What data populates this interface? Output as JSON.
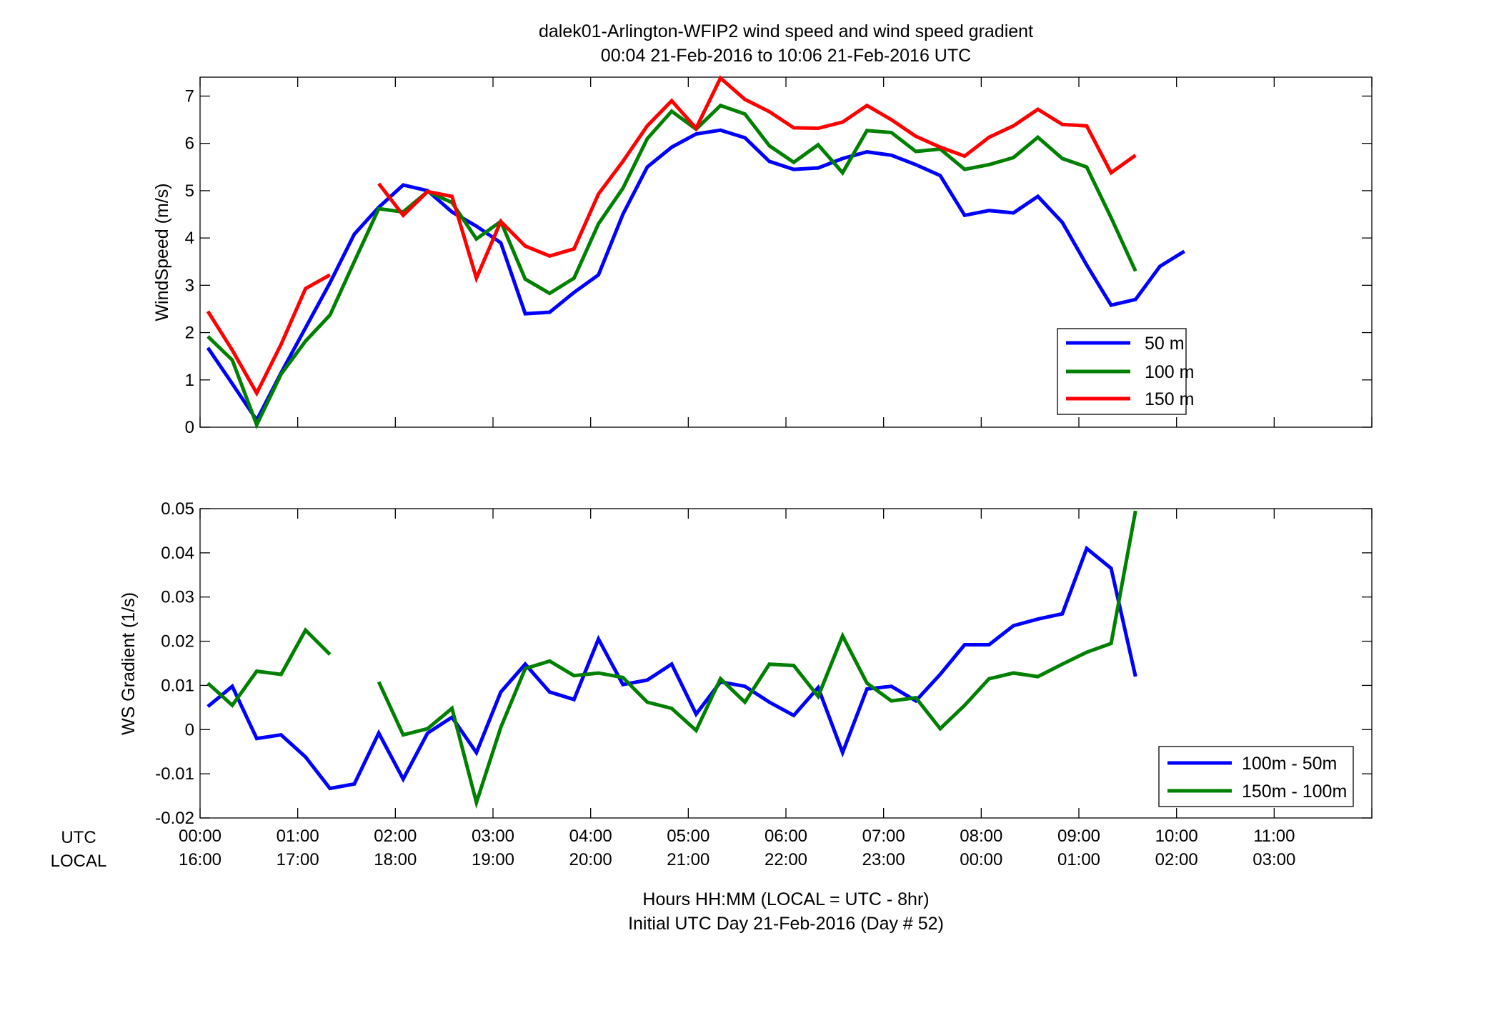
{
  "title": {
    "line1": "dalek01-Arlington-WFIP2  wind speed and wind speed gradient",
    "line2": "00:04 21-Feb-2016 to 10:06 21-Feb-2016  UTC"
  },
  "xaxis": {
    "row_labels": [
      "UTC",
      "LOCAL"
    ],
    "utc_ticks": [
      "00:00",
      "01:00",
      "02:00",
      "03:00",
      "04:00",
      "05:00",
      "06:00",
      "07:00",
      "08:00",
      "09:00",
      "10:00",
      "11:00"
    ],
    "local_ticks": [
      "16:00",
      "17:00",
      "18:00",
      "19:00",
      "20:00",
      "21:00",
      "22:00",
      "23:00",
      "00:00",
      "01:00",
      "02:00",
      "03:00"
    ],
    "label_line1": "Hours HH:MM  (LOCAL = UTC - 8hr)",
    "label_line2": "Initial UTC Day 21-Feb-2016 (Day # 52)"
  },
  "chart_data": [
    {
      "type": "line",
      "ylabel": "WindSpeed (m/s)",
      "xlim": [
        0,
        12
      ],
      "ylim": [
        0,
        7.4
      ],
      "yticks": [
        0,
        1,
        2,
        3,
        4,
        5,
        6,
        7
      ],
      "legend_position": "lower-right",
      "x": [
        0.08,
        0.33,
        0.58,
        0.83,
        1.08,
        1.33,
        1.58,
        1.83,
        2.08,
        2.33,
        2.58,
        2.83,
        3.08,
        3.33,
        3.58,
        3.83,
        4.08,
        4.33,
        4.58,
        4.83,
        5.08,
        5.33,
        5.58,
        5.83,
        6.08,
        6.33,
        6.58,
        6.83,
        7.08,
        7.33,
        7.58,
        7.83,
        8.08,
        8.33,
        8.58,
        8.83,
        9.08,
        9.33,
        9.58,
        9.83,
        10.08
      ],
      "series": [
        {
          "name": "50 m",
          "color": "#0000ff",
          "values": [
            1.68,
            0.92,
            0.15,
            1.15,
            2.1,
            3.05,
            4.08,
            4.65,
            5.12,
            5.0,
            4.55,
            4.25,
            3.9,
            2.4,
            2.43,
            2.85,
            3.22,
            4.5,
            5.5,
            5.92,
            6.2,
            6.28,
            6.12,
            5.62,
            5.45,
            5.48,
            5.68,
            5.82,
            5.75,
            5.55,
            5.32,
            4.48,
            4.58,
            4.53,
            4.88,
            4.33,
            3.43,
            2.58,
            2.7,
            3.4,
            3.72
          ]
        },
        {
          "name": "100 m",
          "color": "#008000",
          "values": [
            1.92,
            1.42,
            0.05,
            1.12,
            1.82,
            2.37,
            3.5,
            4.62,
            4.55,
            4.98,
            4.75,
            3.98,
            4.35,
            3.13,
            2.83,
            3.15,
            4.3,
            5.05,
            6.1,
            6.68,
            6.3,
            6.8,
            6.62,
            5.95,
            5.6,
            5.97,
            5.38,
            6.27,
            6.23,
            5.83,
            5.88,
            5.45,
            5.55,
            5.7,
            6.13,
            5.68,
            5.5,
            4.43,
            3.3,
            null,
            null
          ]
        },
        {
          "name": "150 m",
          "color": "#ff0000",
          "values": [
            2.45,
            1.63,
            0.72,
            1.75,
            2.93,
            3.22,
            null,
            5.15,
            4.48,
            4.98,
            4.88,
            3.15,
            4.35,
            3.83,
            3.62,
            3.77,
            4.93,
            5.62,
            6.37,
            6.9,
            6.32,
            7.38,
            6.93,
            6.67,
            6.33,
            6.32,
            6.45,
            6.8,
            6.5,
            6.15,
            5.92,
            5.73,
            6.13,
            6.37,
            6.72,
            6.4,
            6.37,
            5.38,
            5.75,
            null,
            null
          ]
        }
      ]
    },
    {
      "type": "line",
      "ylabel": "WS Gradient (1/s)",
      "xlim": [
        0,
        12
      ],
      "ylim": [
        -0.02,
        0.05
      ],
      "yticks": [
        -0.02,
        -0.01,
        0,
        0.01,
        0.02,
        0.03,
        0.04,
        0.05
      ],
      "ytick_labels": [
        "-0.02",
        "-0.01",
        "0",
        "0.01",
        "0.02",
        "0.03",
        "0.04",
        "0.05"
      ],
      "legend_position": "lower-right",
      "x": [
        0.08,
        0.33,
        0.58,
        0.83,
        1.08,
        1.33,
        1.58,
        1.83,
        2.08,
        2.33,
        2.58,
        2.83,
        3.08,
        3.33,
        3.58,
        3.83,
        4.08,
        4.33,
        4.58,
        4.83,
        5.08,
        5.33,
        5.58,
        5.83,
        6.08,
        6.33,
        6.58,
        6.83,
        7.08,
        7.33,
        7.58,
        7.83,
        8.08,
        8.33,
        8.58,
        8.83,
        9.08,
        9.33,
        9.58,
        9.83,
        10.08
      ],
      "series": [
        {
          "name": "100m - 50m",
          "color": "#0000ff",
          "values": [
            0.0052,
            0.0098,
            -0.002,
            -0.0012,
            -0.0062,
            -0.0133,
            -0.0123,
            -0.0008,
            -0.0112,
            -0.0008,
            0.0028,
            -0.0052,
            0.0085,
            0.0148,
            0.0085,
            0.0068,
            0.0205,
            0.0102,
            0.0112,
            0.0148,
            0.0035,
            0.0108,
            0.0098,
            0.0062,
            0.0032,
            0.0095,
            -0.0052,
            0.0092,
            0.0098,
            0.0065,
            0.0125,
            0.0192,
            0.0192,
            0.0235,
            0.025,
            0.0262,
            0.041,
            0.0365,
            0.012,
            null,
            null
          ]
        },
        {
          "name": "150m - 100m",
          "color": "#008000",
          "values": [
            0.0105,
            0.0055,
            0.0132,
            0.0125,
            0.0225,
            0.017,
            null,
            0.0108,
            -0.0012,
            0.0002,
            0.0048,
            -0.0165,
            0.0005,
            0.0138,
            0.0155,
            0.0122,
            0.0128,
            0.0118,
            0.0062,
            0.0048,
            -0.0002,
            0.0115,
            0.0062,
            0.0148,
            0.0145,
            0.0075,
            0.0212,
            0.0105,
            0.0065,
            0.0072,
            0.0002,
            0.0055,
            0.0115,
            0.0128,
            0.012,
            0.0148,
            0.0175,
            0.0195,
            0.0495,
            null,
            null
          ]
        }
      ]
    }
  ]
}
